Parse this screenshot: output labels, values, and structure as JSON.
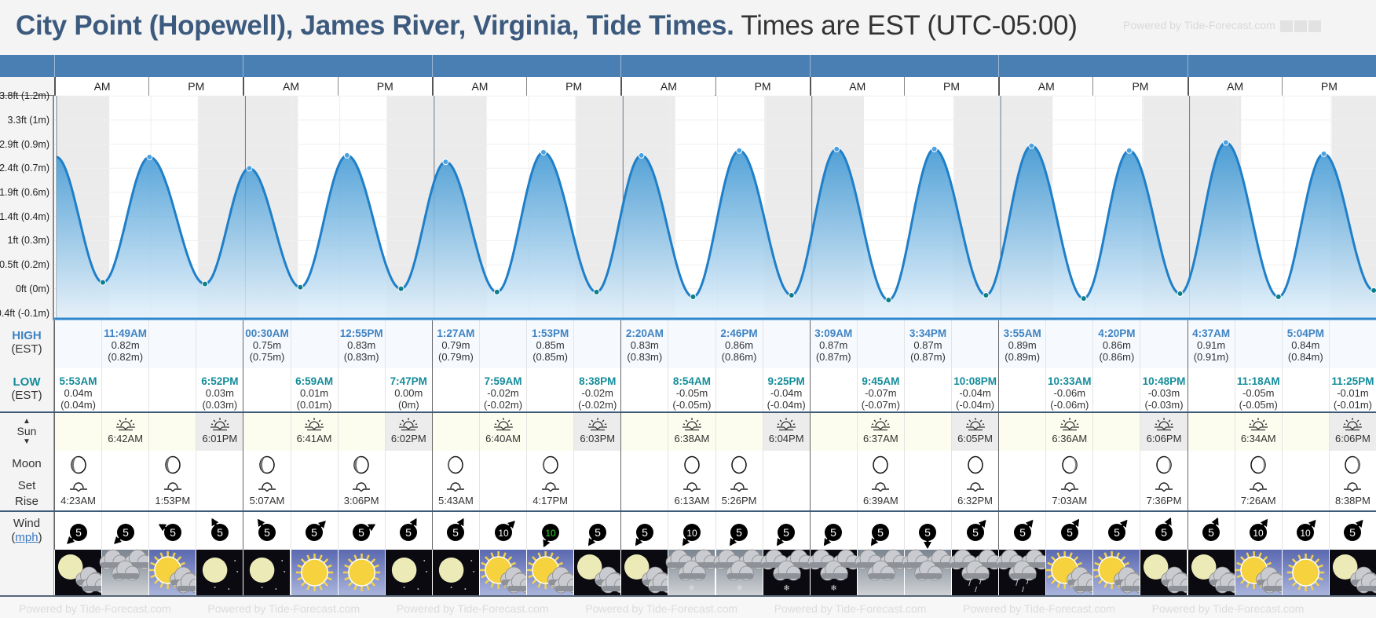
{
  "title": {
    "main": "City Point (Hopewell), James River, Virginia, Tide Times.",
    "sub": "Times are EST (UTC-05:00)"
  },
  "watermark": "Powered by Tide-Forecast.com",
  "colors": {
    "title": "#3c5a7e",
    "header_bar": "#4a7fb3",
    "high_label": "#3f83c2",
    "low_label": "#138c9a",
    "tide_fill": "#2f8fd0",
    "tide_line": "#1f7fc8",
    "night_band": "#ebebeb",
    "sun_row_day": "#fdfdef",
    "sun_row_night": "#ececec",
    "wind_highlight": "#22dd22"
  },
  "header": {
    "am": "AM",
    "pm": "PM"
  },
  "labels": {
    "high": "HIGH",
    "high_tz": "(EST)",
    "low": "LOW",
    "low_tz": "(EST)",
    "sun": "Sun",
    "moon": "Moon",
    "set": "Set",
    "rise": "Rise",
    "wind": "Wind",
    "wind_unit": "mph"
  },
  "chart_data": {
    "type": "area",
    "y_ticks": [
      "-0.4ft (-0.1m)",
      "0ft (0m)",
      "0.5ft (0.2m)",
      "1ft (0.3m)",
      "1.4ft (0.4m)",
      "1.9ft (0.6m)",
      "2.4ft (0.7m)",
      "2.9ft (0.9m)",
      "3.3ft (1m)",
      "3.8ft (1.2m)"
    ],
    "y_unit": "m",
    "x_unit": "time (7 days, AM/PM halves)",
    "grid": true,
    "night_shading": true
  },
  "days": [
    {
      "highs": [
        {
          "time": "11:49AM",
          "m": "0.82m",
          "alt": "(0.82m)",
          "v": 0.82
        }
      ],
      "lows": [
        {
          "time": "5:53AM",
          "m": "0.04m",
          "alt": "(0.04m)",
          "v": 0.04
        },
        {
          "time": "6:52PM",
          "m": "0.03m",
          "alt": "(0.03m)",
          "v": 0.03
        }
      ],
      "sunrise": "6:42AM",
      "sunset": "6:01PM",
      "moon": {
        "set": "4:23AM",
        "rise": "1:53PM",
        "phase": "waning-left"
      },
      "wind": [
        {
          "speed": 5,
          "dir": 225
        },
        {
          "speed": 5,
          "dir": 225
        },
        {
          "speed": 5,
          "dir": 300
        },
        {
          "speed": 5,
          "dir": 330
        }
      ],
      "weather": [
        "moon-cloud",
        "cloudy",
        "sun-cloud",
        "moon"
      ]
    },
    {
      "highs": [
        {
          "time": "00:30AM",
          "m": "0.75m",
          "alt": "(0.75m)",
          "v": 0.75
        },
        {
          "time": "12:55PM",
          "m": "0.83m",
          "alt": "(0.83m)",
          "v": 0.83
        }
      ],
      "lows": [
        {
          "time": "6:59AM",
          "m": "0.01m",
          "alt": "(0.01m)",
          "v": 0.01
        },
        {
          "time": "7:47PM",
          "m": "0.00m",
          "alt": "(0m)",
          "v": 0.0
        }
      ],
      "sunrise": "6:41AM",
      "sunset": "6:02PM",
      "moon": {
        "set": "5:07AM",
        "rise": "3:06PM",
        "phase": "waning-left"
      },
      "wind": [
        {
          "speed": 5,
          "dir": 325
        },
        {
          "speed": 5,
          "dir": 45
        },
        {
          "speed": 5,
          "dir": 60
        },
        {
          "speed": 5,
          "dir": 30
        }
      ],
      "weather": [
        "moon",
        "sun",
        "sun",
        "moon"
      ]
    },
    {
      "highs": [
        {
          "time": "1:27AM",
          "m": "0.79m",
          "alt": "(0.79m)",
          "v": 0.79
        },
        {
          "time": "1:53PM",
          "m": "0.85m",
          "alt": "(0.85m)",
          "v": 0.85
        }
      ],
      "lows": [
        {
          "time": "7:59AM",
          "m": "-0.02m",
          "alt": "(-0.02m)",
          "v": -0.02
        },
        {
          "time": "8:38PM",
          "m": "-0.02m",
          "alt": "(-0.02m)",
          "v": -0.02
        }
      ],
      "sunrise": "6:40AM",
      "sunset": "6:03PM",
      "moon": {
        "set": "5:43AM",
        "rise": "4:17PM",
        "phase": "thin-left"
      },
      "wind": [
        {
          "speed": 5,
          "dir": 30
        },
        {
          "speed": 10,
          "dir": 45
        },
        {
          "speed": 10,
          "dir": 205,
          "highlight": true
        },
        {
          "speed": 5,
          "dir": 215
        }
      ],
      "weather": [
        "moon",
        "sun-cloud",
        "sun-cloud",
        "moon-cloud"
      ]
    },
    {
      "highs": [
        {
          "time": "2:20AM",
          "m": "0.83m",
          "alt": "(0.83m)",
          "v": 0.83
        },
        {
          "time": "2:46PM",
          "m": "0.86m",
          "alt": "(0.86m)",
          "v": 0.86
        }
      ],
      "lows": [
        {
          "time": "8:54AM",
          "m": "-0.05m",
          "alt": "(-0.05m)",
          "v": -0.05
        },
        {
          "time": "9:25PM",
          "m": "-0.04m",
          "alt": "(-0.04m)",
          "v": -0.04
        }
      ],
      "sunrise": "6:38AM",
      "sunset": "6:04PM",
      "moon": {
        "set": "6:13AM",
        "rise": "5:26PM",
        "phase": "full"
      },
      "wind": [
        {
          "speed": 5,
          "dir": 215
        },
        {
          "speed": 10,
          "dir": 215
        },
        {
          "speed": 5,
          "dir": 215
        },
        {
          "speed": 5,
          "dir": 215
        }
      ],
      "weather": [
        "moon-cloud",
        "snow-day",
        "snow-day",
        "snow-night"
      ]
    },
    {
      "highs": [
        {
          "time": "3:09AM",
          "m": "0.87m",
          "alt": "(0.87m)",
          "v": 0.87
        },
        {
          "time": "3:34PM",
          "m": "0.87m",
          "alt": "(0.87m)",
          "v": 0.87
        }
      ],
      "lows": [
        {
          "time": "9:45AM",
          "m": "-0.07m",
          "alt": "(-0.07m)",
          "v": -0.07
        },
        {
          "time": "10:08PM",
          "m": "-0.04m",
          "alt": "(-0.04m)",
          "v": -0.04
        }
      ],
      "sunrise": "6:37AM",
      "sunset": "6:05PM",
      "moon": {
        "set": "6:39AM",
        "rise": "6:32PM",
        "phase": "full"
      },
      "wind": [
        {
          "speed": 5,
          "dir": 215
        },
        {
          "speed": 5,
          "dir": 215
        },
        {
          "speed": 5,
          "dir": 180
        },
        {
          "speed": 5,
          "dir": 40
        }
      ],
      "weather": [
        "snow-night",
        "cloudy",
        "cloudy",
        "rain-night"
      ]
    },
    {
      "highs": [
        {
          "time": "3:55AM",
          "m": "0.89m",
          "alt": "(0.89m)",
          "v": 0.89
        },
        {
          "time": "4:20PM",
          "m": "0.86m",
          "alt": "(0.86m)",
          "v": 0.86
        }
      ],
      "lows": [
        {
          "time": "10:33AM",
          "m": "-0.06m",
          "alt": "(-0.06m)",
          "v": -0.06
        },
        {
          "time": "10:48PM",
          "m": "-0.03m",
          "alt": "(-0.03m)",
          "v": -0.03
        }
      ],
      "sunrise": "6:36AM",
      "sunset": "6:06PM",
      "moon": {
        "set": "7:03AM",
        "rise": "7:36PM",
        "phase": "waxing-right"
      },
      "wind": [
        {
          "speed": 5,
          "dir": 40
        },
        {
          "speed": 5,
          "dir": 35
        },
        {
          "speed": 5,
          "dir": 40
        },
        {
          "speed": 5,
          "dir": 25
        }
      ],
      "weather": [
        "rain-night",
        "sun-cloud",
        "sun-cloud",
        "moon-cloud"
      ]
    },
    {
      "highs": [
        {
          "time": "4:37AM",
          "m": "0.91m",
          "alt": "(0.91m)",
          "v": 0.91
        },
        {
          "time": "5:04PM",
          "m": "0.84m",
          "alt": "(0.84m)",
          "v": 0.84
        }
      ],
      "lows": [
        {
          "time": "11:18AM",
          "m": "-0.05m",
          "alt": "(-0.05m)",
          "v": -0.05
        },
        {
          "time": "11:25PM",
          "m": "-0.01m",
          "alt": "(-0.01m)",
          "v": -0.01
        }
      ],
      "sunrise": "6:34AM",
      "sunset": "6:06PM",
      "moon": {
        "set": "7:26AM",
        "rise": "8:38PM",
        "phase": "waxing-right"
      },
      "wind": [
        {
          "speed": 5,
          "dir": 25
        },
        {
          "speed": 10,
          "dir": 35
        },
        {
          "speed": 10,
          "dir": 40
        },
        {
          "speed": 5,
          "dir": 40
        }
      ],
      "weather": [
        "moon-cloud",
        "sun-cloud",
        "sun",
        "moon-cloud"
      ]
    }
  ]
}
